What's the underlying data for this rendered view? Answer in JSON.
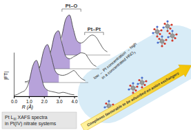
{
  "chart_data": {
    "type": "line",
    "x_label": "R (Å)",
    "y_label": "|FT|",
    "x": [
      0,
      0.25,
      0.5,
      0.75,
      1.0,
      1.25,
      1.5,
      1.75,
      2.0,
      2.25,
      2.5,
      2.75,
      3.0,
      3.25,
      3.5,
      3.75,
      4.0
    ],
    "xlim": [
      0,
      4.2
    ],
    "xticks": [
      {
        "value": 0,
        "label": "0.0"
      },
      {
        "value": 1,
        "label": "1.0"
      },
      {
        "value": 2,
        "label": "2.0"
      },
      {
        "value": 3,
        "label": "3.0"
      },
      {
        "value": 4,
        "label": "4.0"
      }
    ],
    "ylim": [
      0,
      1.1
    ],
    "tick_labels": "x",
    "series": [
      {
        "color": "#333333",
        "values": [
          0.02,
          0.05,
          0.1,
          0.15,
          0.35,
          0.75,
          0.9,
          0.6,
          0.25,
          0.15,
          0.12,
          0.1,
          0.08,
          0.1,
          0.08,
          0.05,
          0.04
        ]
      },
      {
        "color": "#333333",
        "values": [
          0.02,
          0.04,
          0.1,
          0.2,
          0.4,
          0.8,
          0.95,
          0.65,
          0.3,
          0.2,
          0.18,
          0.2,
          0.25,
          0.3,
          0.2,
          0.1,
          0.05
        ]
      },
      {
        "color": "#333333",
        "values": [
          0.02,
          0.05,
          0.12,
          0.2,
          0.45,
          0.85,
          0.95,
          0.6,
          0.3,
          0.25,
          0.3,
          0.35,
          0.4,
          0.38,
          0.25,
          0.12,
          0.06
        ]
      },
      {
        "color": "#333333",
        "values": [
          0.03,
          0.06,
          0.12,
          0.22,
          0.5,
          0.9,
          1.0,
          0.65,
          0.35,
          0.3,
          0.35,
          0.45,
          0.5,
          0.45,
          0.3,
          0.15,
          0.08
        ]
      }
    ],
    "annotations": [
      {
        "text": "Pt–O",
        "range": [
          1.0,
          2.25
        ],
        "color": "#b7a2da"
      },
      {
        "text": "Pt–Pt",
        "range": [
          2.5,
          3.75
        ]
      }
    ],
    "caption": [
      [
        {
          "text": "Pt L"
        },
        {
          "text": "III",
          "subscript": true
        },
        {
          "text": " XAFS spectra"
        }
      ],
      [
        {
          "text": "in Pt(IV) nitrate systems"
        }
      ]
    ],
    "concentration_label": [
      [
        {
          "text": "low ← Pt concentration → high"
        }
      ],
      [
        {
          "text": "in a concentrated HNO"
        },
        {
          "text": "3",
          "subscript": true
        }
      ]
    ],
    "arrow_label": "Complexes favourable to be adsorbed on anion exchangers"
  }
}
